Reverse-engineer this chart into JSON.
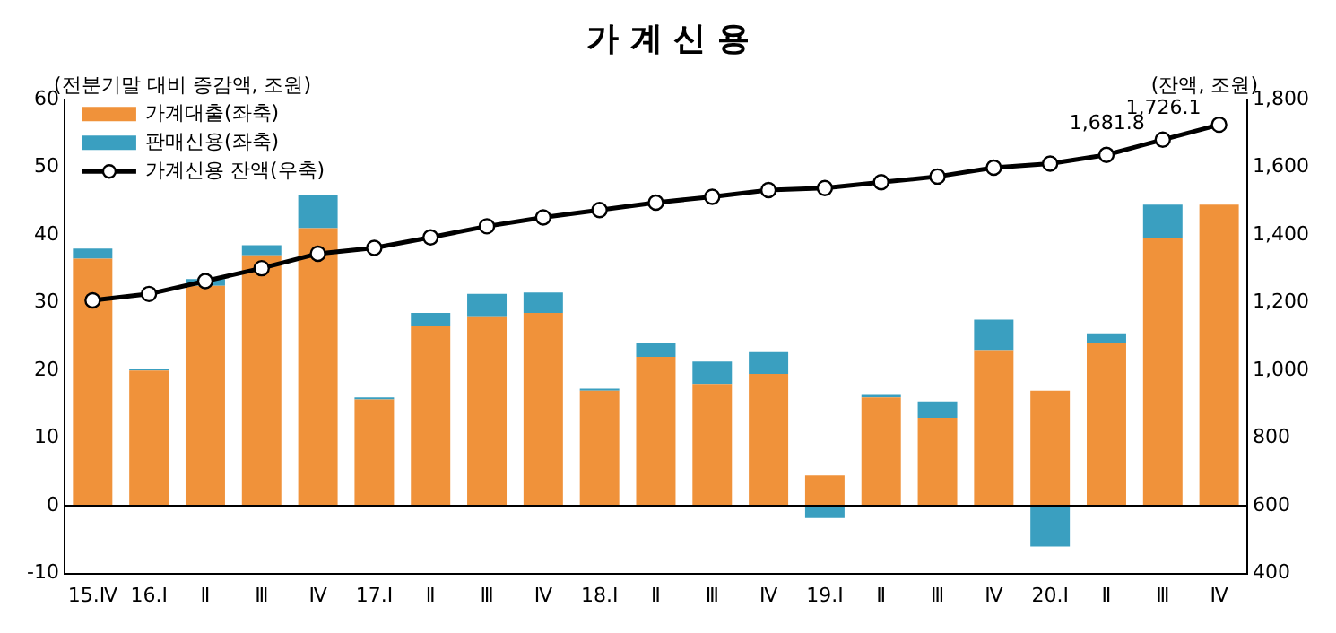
{
  "chart_data": {
    "type": "bar",
    "title": "가 계 신 용",
    "categories": [
      "15.Ⅳ",
      "16.Ⅰ",
      "Ⅱ",
      "Ⅲ",
      "Ⅳ",
      "17.Ⅰ",
      "Ⅱ",
      "Ⅲ",
      "Ⅳ",
      "18.Ⅰ",
      "Ⅱ",
      "Ⅲ",
      "Ⅳ",
      "19.Ⅰ",
      "Ⅱ",
      "Ⅲ",
      "Ⅳ",
      "20.Ⅰ",
      "Ⅱ",
      "Ⅲ",
      "Ⅳ"
    ],
    "stacked": true,
    "series": [
      {
        "name": "가계대출(좌축)",
        "color": "#f0923a",
        "values": [
          36.5,
          20,
          32.5,
          37,
          41,
          15.7,
          26.5,
          28,
          28.5,
          17,
          22,
          18,
          19.5,
          4.5,
          16,
          13,
          23,
          17,
          24,
          39.5,
          44.5
        ]
      },
      {
        "name": "판매신용(좌축)",
        "color": "#3a9fc0",
        "values": [
          1.5,
          0.3,
          1,
          1.5,
          5,
          0.3,
          2,
          3.3,
          3,
          0.3,
          2,
          3.3,
          3.2,
          -1.8,
          0.5,
          2.4,
          4.5,
          -6,
          1.5,
          5,
          0
        ]
      },
      {
        "name": "가계신용 잔액(우축)",
        "type": "line",
        "axis": "y2",
        "color": "#000000",
        "values": [
          1207,
          1226,
          1264,
          1302,
          1345,
          1362,
          1393,
          1426,
          1452,
          1474,
          1496,
          1513,
          1533,
          1539,
          1556,
          1573,
          1599,
          1611,
          1637,
          1681.8,
          1726.1
        ],
        "value_labels": [
          null,
          null,
          null,
          null,
          null,
          null,
          null,
          null,
          null,
          null,
          null,
          null,
          null,
          null,
          null,
          null,
          null,
          null,
          null,
          "1,681.8",
          "1,726.1"
        ]
      }
    ],
    "ylim": [
      -10,
      60
    ],
    "yticks": [
      -10,
      0,
      10,
      20,
      30,
      40,
      50,
      60
    ],
    "y2lim": [
      400,
      1800
    ],
    "y2ticks": [
      {
        "value": 400,
        "label": "400"
      },
      {
        "value": 600,
        "label": "600"
      },
      {
        "value": 800,
        "label": "800"
      },
      {
        "value": 1000,
        "label": "1,000"
      },
      {
        "value": 1200,
        "label": "1,200"
      },
      {
        "value": 1400,
        "label": "1,400"
      },
      {
        "value": 1600,
        "label": "1,600"
      },
      {
        "value": 1800,
        "label": "1,800"
      }
    ],
    "ref_lines": [
      {
        "axis": "y",
        "value": 0,
        "color": "#000000"
      }
    ],
    "annotations": [
      "(전분기말 대비 증감액, 조원)",
      "(잔액, 조원)"
    ],
    "marker": "circle",
    "grid": false,
    "legend": "top left"
  }
}
